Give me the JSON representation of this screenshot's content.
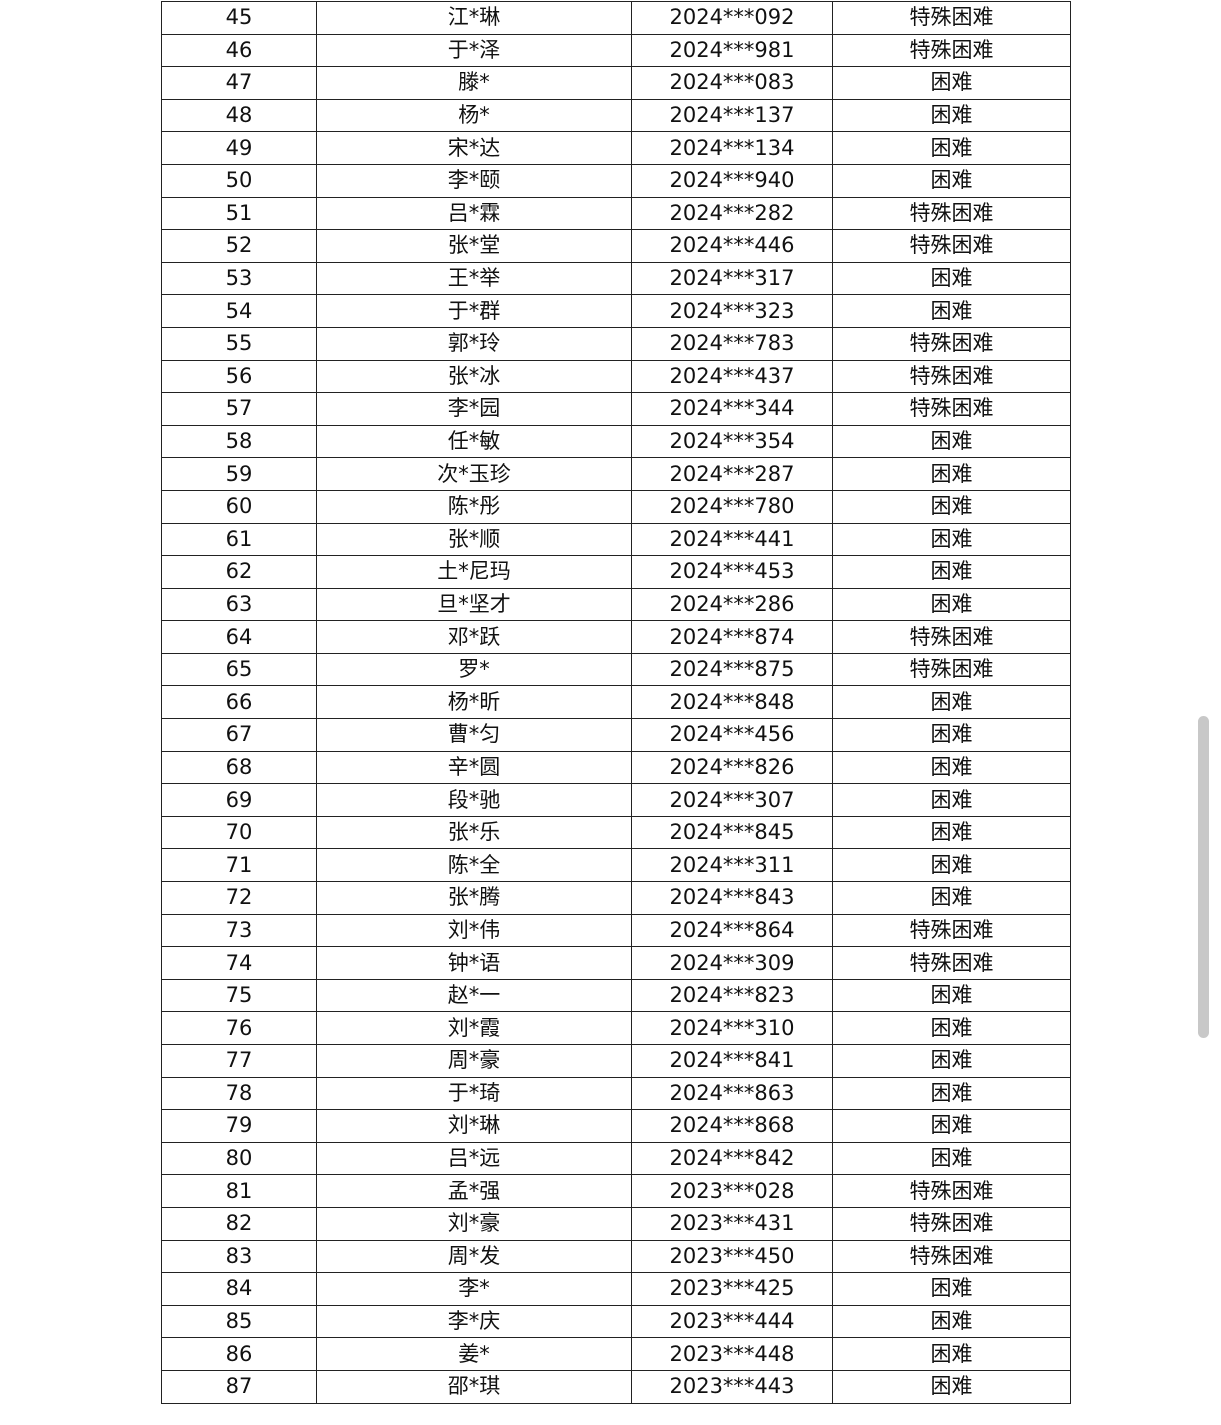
{
  "table": {
    "rows": [
      [
        "45",
        "江*琳",
        "2024***092",
        "特殊困难"
      ],
      [
        "46",
        "于*泽",
        "2024***981",
        "特殊困难"
      ],
      [
        "47",
        "滕*",
        "2024***083",
        "困难"
      ],
      [
        "48",
        "杨*",
        "2024***137",
        "困难"
      ],
      [
        "49",
        "宋*达",
        "2024***134",
        "困难"
      ],
      [
        "50",
        "李*颐",
        "2024***940",
        "困难"
      ],
      [
        "51",
        "吕*霖",
        "2024***282",
        "特殊困难"
      ],
      [
        "52",
        "张*堂",
        "2024***446",
        "特殊困难"
      ],
      [
        "53",
        "王*举",
        "2024***317",
        "困难"
      ],
      [
        "54",
        "于*群",
        "2024***323",
        "困难"
      ],
      [
        "55",
        "郭*玲",
        "2024***783",
        "特殊困难"
      ],
      [
        "56",
        "张*冰",
        "2024***437",
        "特殊困难"
      ],
      [
        "57",
        "李*园",
        "2024***344",
        "特殊困难"
      ],
      [
        "58",
        "任*敏",
        "2024***354",
        "困难"
      ],
      [
        "59",
        "次*玉珍",
        "2024***287",
        "困难"
      ],
      [
        "60",
        "陈*彤",
        "2024***780",
        "困难"
      ],
      [
        "61",
        "张*顺",
        "2024***441",
        "困难"
      ],
      [
        "62",
        "土*尼玛",
        "2024***453",
        "困难"
      ],
      [
        "63",
        "旦*坚才",
        "2024***286",
        "困难"
      ],
      [
        "64",
        "邓*跃",
        "2024***874",
        "特殊困难"
      ],
      [
        "65",
        "罗*",
        "2024***875",
        "特殊困难"
      ],
      [
        "66",
        "杨*昕",
        "2024***848",
        "困难"
      ],
      [
        "67",
        "曹*匀",
        "2024***456",
        "困难"
      ],
      [
        "68",
        "辛*圆",
        "2024***826",
        "困难"
      ],
      [
        "69",
        "段*驰",
        "2024***307",
        "困难"
      ],
      [
        "70",
        "张*乐",
        "2024***845",
        "困难"
      ],
      [
        "71",
        "陈*全",
        "2024***311",
        "困难"
      ],
      [
        "72",
        "张*腾",
        "2024***843",
        "困难"
      ],
      [
        "73",
        "刘*伟",
        "2024***864",
        "特殊困难"
      ],
      [
        "74",
        "钟*语",
        "2024***309",
        "特殊困难"
      ],
      [
        "75",
        "赵*一",
        "2024***823",
        "困难"
      ],
      [
        "76",
        "刘*霞",
        "2024***310",
        "困难"
      ],
      [
        "77",
        "周*豪",
        "2024***841",
        "困难"
      ],
      [
        "78",
        "于*琦",
        "2024***863",
        "困难"
      ],
      [
        "79",
        "刘*琳",
        "2024***868",
        "困难"
      ],
      [
        "80",
        "吕*远",
        "2024***842",
        "困难"
      ],
      [
        "81",
        "孟*强",
        "2023***028",
        "特殊困难"
      ],
      [
        "82",
        "刘*豪",
        "2023***431",
        "特殊困难"
      ],
      [
        "83",
        "周*发",
        "2023***450",
        "特殊困难"
      ],
      [
        "84",
        "李*",
        "2023***425",
        "困难"
      ],
      [
        "85",
        "李*庆",
        "2023***444",
        "困难"
      ],
      [
        "86",
        "姜*",
        "2023***448",
        "困难"
      ],
      [
        "87",
        "邵*琪",
        "2023***443",
        "困难"
      ]
    ]
  }
}
